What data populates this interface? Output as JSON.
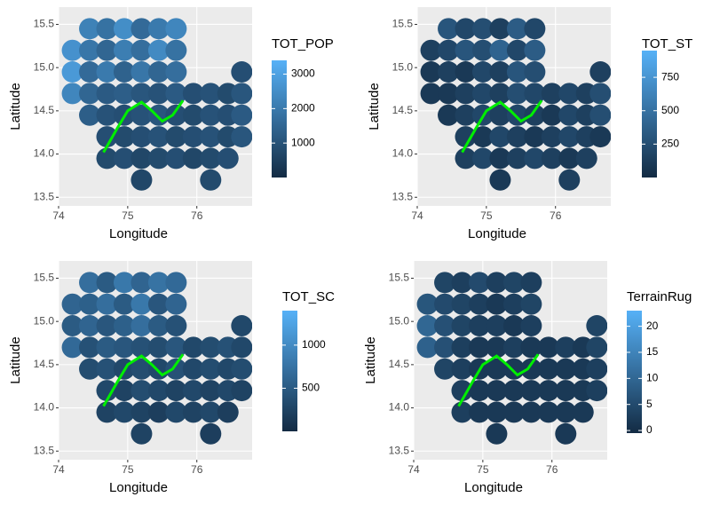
{
  "chart_data": [
    {
      "type": "scatter",
      "x_label": "Longitude",
      "y_label": "Latitude",
      "xlim": [
        74.0,
        76.8
      ],
      "ylim": [
        13.4,
        15.7
      ],
      "xticks": [
        74,
        75,
        76
      ],
      "yticks": [
        13.5,
        {
          "value": 14,
          "label": "14.0"
        },
        14.5,
        {
          "value": 15,
          "label": "15.0"
        },
        15.5
      ],
      "x": [
        74.45,
        74.7,
        74.95,
        75.2,
        75.45,
        75.7,
        74.2,
        74.45,
        74.7,
        74.95,
        75.2,
        75.45,
        75.7,
        74.2,
        74.45,
        74.7,
        74.95,
        75.2,
        75.45,
        75.7,
        76.65,
        74.2,
        74.45,
        74.7,
        74.95,
        75.2,
        75.45,
        75.7,
        75.95,
        76.2,
        76.45,
        76.65,
        74.45,
        74.7,
        74.95,
        75.2,
        75.45,
        75.7,
        75.95,
        76.2,
        76.45,
        76.65,
        74.7,
        74.95,
        75.2,
        75.45,
        75.7,
        75.95,
        76.2,
        76.45,
        76.65,
        74.7,
        74.95,
        75.2,
        75.45,
        75.7,
        75.95,
        76.2,
        76.45,
        75.2,
        76.2
      ],
      "y": [
        15.45,
        15.45,
        15.45,
        15.45,
        15.45,
        15.45,
        15.2,
        15.2,
        15.2,
        15.2,
        15.2,
        15.2,
        15.2,
        14.95,
        14.95,
        14.95,
        14.95,
        14.95,
        14.95,
        14.95,
        14.95,
        14.7,
        14.7,
        14.7,
        14.7,
        14.7,
        14.7,
        14.7,
        14.7,
        14.7,
        14.7,
        14.7,
        14.45,
        14.45,
        14.45,
        14.45,
        14.45,
        14.45,
        14.45,
        14.45,
        14.45,
        14.45,
        14.2,
        14.2,
        14.2,
        14.2,
        14.2,
        14.2,
        14.2,
        14.2,
        14.2,
        13.95,
        13.95,
        13.95,
        13.95,
        13.95,
        13.95,
        13.95,
        13.95,
        13.7,
        13.7
      ],
      "color_values": [
        2200,
        1800,
        2500,
        1600,
        2000,
        2300,
        2600,
        1900,
        1500,
        2100,
        1700,
        2400,
        1800,
        2800,
        1600,
        2000,
        1400,
        1900,
        1500,
        1700,
        900,
        2300,
        1500,
        1200,
        1300,
        1100,
        1000,
        1200,
        900,
        1000,
        800,
        1100,
        1300,
        1000,
        900,
        1000,
        1100,
        900,
        800,
        1000,
        900,
        1200,
        900,
        800,
        900,
        1000,
        800,
        900,
        1000,
        800,
        1100,
        800,
        900,
        700,
        800,
        900,
        700,
        800,
        900,
        700,
        800
      ],
      "colorbar": {
        "title": "TOT_POP",
        "lim": [
          0,
          3400
        ],
        "ticks": [
          1000,
          2000,
          3000
        ],
        "colors": [
          "#132B43",
          "#56B1F7"
        ]
      },
      "curve": {
        "color": "#00ee00",
        "x": [
          74.65,
          74.85,
          75.0,
          75.2,
          75.35,
          75.5,
          75.65,
          75.8
        ],
        "y": [
          14.02,
          14.3,
          14.5,
          14.6,
          14.5,
          14.38,
          14.45,
          14.62
        ]
      }
    },
    {
      "type": "scatter",
      "x_label": "Longitude",
      "y_label": "Latitude",
      "xlim": [
        74.0,
        76.8
      ],
      "ylim": [
        13.4,
        15.7
      ],
      "xticks": [
        74,
        75,
        76
      ],
      "yticks": [
        13.5,
        {
          "value": 14,
          "label": "14.0"
        },
        14.5,
        {
          "value": 15,
          "label": "15.0"
        },
        15.5
      ],
      "x": [
        74.45,
        74.7,
        74.95,
        75.2,
        75.45,
        75.7,
        74.2,
        74.45,
        74.7,
        74.95,
        75.2,
        75.45,
        75.7,
        74.2,
        74.45,
        74.7,
        74.95,
        75.2,
        75.45,
        75.7,
        76.65,
        74.2,
        74.45,
        74.7,
        74.95,
        75.2,
        75.45,
        75.7,
        75.95,
        76.2,
        76.45,
        76.65,
        74.45,
        74.7,
        74.95,
        75.2,
        75.45,
        75.7,
        75.95,
        76.2,
        76.45,
        76.65,
        74.7,
        74.95,
        75.2,
        75.45,
        75.7,
        75.95,
        76.2,
        76.45,
        76.65,
        74.7,
        74.95,
        75.2,
        75.45,
        75.7,
        75.95,
        76.2,
        76.45,
        75.2,
        76.2
      ],
      "y": [
        15.45,
        15.45,
        15.45,
        15.45,
        15.45,
        15.45,
        15.2,
        15.2,
        15.2,
        15.2,
        15.2,
        15.2,
        15.2,
        14.95,
        14.95,
        14.95,
        14.95,
        14.95,
        14.95,
        14.95,
        14.95,
        14.7,
        14.7,
        14.7,
        14.7,
        14.7,
        14.7,
        14.7,
        14.7,
        14.7,
        14.7,
        14.7,
        14.45,
        14.45,
        14.45,
        14.45,
        14.45,
        14.45,
        14.45,
        14.45,
        14.45,
        14.45,
        14.2,
        14.2,
        14.2,
        14.2,
        14.2,
        14.2,
        14.2,
        14.2,
        14.2,
        13.95,
        13.95,
        13.95,
        13.95,
        13.95,
        13.95,
        13.95,
        13.95,
        13.7,
        13.7
      ],
      "color_values": [
        300,
        200,
        250,
        150,
        350,
        200,
        150,
        200,
        300,
        250,
        400,
        200,
        350,
        100,
        150,
        100,
        200,
        150,
        300,
        250,
        150,
        100,
        100,
        150,
        200,
        150,
        250,
        200,
        150,
        200,
        150,
        250,
        100,
        150,
        200,
        150,
        200,
        150,
        100,
        200,
        150,
        250,
        150,
        100,
        200,
        150,
        100,
        150,
        200,
        150,
        100,
        150,
        200,
        100,
        150,
        200,
        150,
        100,
        150,
        100,
        150
      ],
      "colorbar": {
        "title": "TOT_ST",
        "lim": [
          0,
          950
        ],
        "ticks": [
          250,
          500,
          750
        ],
        "colors": [
          "#132B43",
          "#56B1F7"
        ]
      },
      "curve": {
        "color": "#00ee00",
        "x": [
          74.65,
          74.85,
          75.0,
          75.2,
          75.35,
          75.5,
          75.65,
          75.8
        ],
        "y": [
          14.02,
          14.3,
          14.5,
          14.6,
          14.5,
          14.38,
          14.45,
          14.62
        ]
      }
    },
    {
      "type": "scatter",
      "x_label": "Longitude",
      "y_label": "Latitude",
      "xlim": [
        74.0,
        76.8
      ],
      "ylim": [
        13.4,
        15.7
      ],
      "xticks": [
        74,
        75,
        76
      ],
      "yticks": [
        13.5,
        {
          "value": 14,
          "label": "14.0"
        },
        14.5,
        {
          "value": 15,
          "label": "15.0"
        },
        15.5
      ],
      "x": [
        74.45,
        74.7,
        74.95,
        75.2,
        75.45,
        75.7,
        74.2,
        74.45,
        74.7,
        74.95,
        75.2,
        75.45,
        75.7,
        74.2,
        74.45,
        74.7,
        74.95,
        75.2,
        75.45,
        75.7,
        76.65,
        74.2,
        74.45,
        74.7,
        74.95,
        75.2,
        75.45,
        75.7,
        75.95,
        76.2,
        76.45,
        76.65,
        74.45,
        74.7,
        74.95,
        75.2,
        75.45,
        75.7,
        75.95,
        76.2,
        76.45,
        76.65,
        74.7,
        74.95,
        75.2,
        75.45,
        75.7,
        75.95,
        76.2,
        76.45,
        76.65,
        74.7,
        74.95,
        75.2,
        75.45,
        75.7,
        75.95,
        76.2,
        76.45,
        75.2,
        76.2
      ],
      "y": [
        15.45,
        15.45,
        15.45,
        15.45,
        15.45,
        15.45,
        15.2,
        15.2,
        15.2,
        15.2,
        15.2,
        15.2,
        15.2,
        14.95,
        14.95,
        14.95,
        14.95,
        14.95,
        14.95,
        14.95,
        14.95,
        14.7,
        14.7,
        14.7,
        14.7,
        14.7,
        14.7,
        14.7,
        14.7,
        14.7,
        14.7,
        14.7,
        14.45,
        14.45,
        14.45,
        14.45,
        14.45,
        14.45,
        14.45,
        14.45,
        14.45,
        14.45,
        14.2,
        14.2,
        14.2,
        14.2,
        14.2,
        14.2,
        14.2,
        14.2,
        14.2,
        13.95,
        13.95,
        13.95,
        13.95,
        13.95,
        13.95,
        13.95,
        13.95,
        13.7,
        13.7
      ],
      "color_values": [
        700,
        500,
        800,
        600,
        750,
        650,
        600,
        550,
        700,
        500,
        800,
        450,
        600,
        500,
        600,
        450,
        550,
        700,
        500,
        400,
        300,
        650,
        400,
        500,
        450,
        400,
        350,
        450,
        300,
        350,
        400,
        300,
        350,
        400,
        300,
        350,
        300,
        400,
        300,
        350,
        300,
        350,
        300,
        250,
        350,
        300,
        250,
        300,
        250,
        300,
        250,
        250,
        300,
        250,
        200,
        300,
        250,
        300,
        200,
        250,
        200
      ],
      "colorbar": {
        "title": "TOT_SC",
        "lim": [
          0,
          1400
        ],
        "ticks": [
          500,
          1000
        ],
        "colors": [
          "#132B43",
          "#56B1F7"
        ]
      },
      "curve": {
        "color": "#00ee00",
        "x": [
          74.65,
          74.85,
          75.0,
          75.2,
          75.35,
          75.5,
          75.65,
          75.8
        ],
        "y": [
          14.02,
          14.3,
          14.5,
          14.6,
          14.5,
          14.38,
          14.45,
          14.62
        ]
      }
    },
    {
      "type": "scatter",
      "x_label": "Longitude",
      "y_label": "Latitude",
      "xlim": [
        74.0,
        76.8
      ],
      "ylim": [
        13.4,
        15.7
      ],
      "xticks": [
        74,
        75,
        76
      ],
      "yticks": [
        13.5,
        {
          "value": 14,
          "label": "14.0"
        },
        14.5,
        {
          "value": 15,
          "label": "15.0"
        },
        15.5
      ],
      "x": [
        74.45,
        74.7,
        74.95,
        75.2,
        75.45,
        75.7,
        74.2,
        74.45,
        74.7,
        74.95,
        75.2,
        75.45,
        75.7,
        74.2,
        74.45,
        74.7,
        74.95,
        75.2,
        75.45,
        75.7,
        76.65,
        74.2,
        74.45,
        74.7,
        74.95,
        75.2,
        75.45,
        75.7,
        75.95,
        76.2,
        76.45,
        76.65,
        74.45,
        74.7,
        74.95,
        75.2,
        75.45,
        75.7,
        75.95,
        76.2,
        76.45,
        76.65,
        74.7,
        74.95,
        75.2,
        75.45,
        75.7,
        75.95,
        76.2,
        76.45,
        76.65,
        74.7,
        74.95,
        75.2,
        75.45,
        75.7,
        75.95,
        76.2,
        76.45,
        75.2,
        76.2
      ],
      "y": [
        15.45,
        15.45,
        15.45,
        15.45,
        15.45,
        15.45,
        15.2,
        15.2,
        15.2,
        15.2,
        15.2,
        15.2,
        15.2,
        14.95,
        14.95,
        14.95,
        14.95,
        14.95,
        14.95,
        14.95,
        14.95,
        14.7,
        14.7,
        14.7,
        14.7,
        14.7,
        14.7,
        14.7,
        14.7,
        14.7,
        14.7,
        14.7,
        14.45,
        14.45,
        14.45,
        14.45,
        14.45,
        14.45,
        14.45,
        14.45,
        14.45,
        14.45,
        14.2,
        14.2,
        14.2,
        14.2,
        14.2,
        14.2,
        14.2,
        14.2,
        14.2,
        13.95,
        13.95,
        13.95,
        13.95,
        13.95,
        13.95,
        13.95,
        13.95,
        13.7,
        13.7
      ],
      "color_values": [
        4,
        3,
        5,
        3,
        4,
        3,
        7,
        5,
        4,
        3,
        2,
        3,
        4,
        10,
        6,
        4,
        3,
        3,
        2,
        3,
        4,
        9,
        6,
        3,
        2,
        2,
        3,
        2,
        2,
        3,
        2,
        4,
        4,
        3,
        2,
        2,
        2,
        2,
        2,
        2,
        2,
        3,
        3,
        2,
        2,
        2,
        2,
        2,
        2,
        2,
        3,
        3,
        2,
        2,
        2,
        2,
        2,
        2,
        2,
        2,
        2
      ],
      "colorbar": {
        "title": "TerrainRug",
        "lim": [
          -0.5,
          23
        ],
        "ticks": [
          0,
          5,
          10,
          15,
          20
        ],
        "colors": [
          "#132B43",
          "#56B1F7"
        ]
      },
      "curve": {
        "color": "#00ee00",
        "x": [
          74.65,
          74.85,
          75.0,
          75.2,
          75.35,
          75.5,
          75.65,
          75.8
        ],
        "y": [
          14.02,
          14.3,
          14.5,
          14.6,
          14.5,
          14.38,
          14.45,
          14.62
        ]
      }
    }
  ]
}
